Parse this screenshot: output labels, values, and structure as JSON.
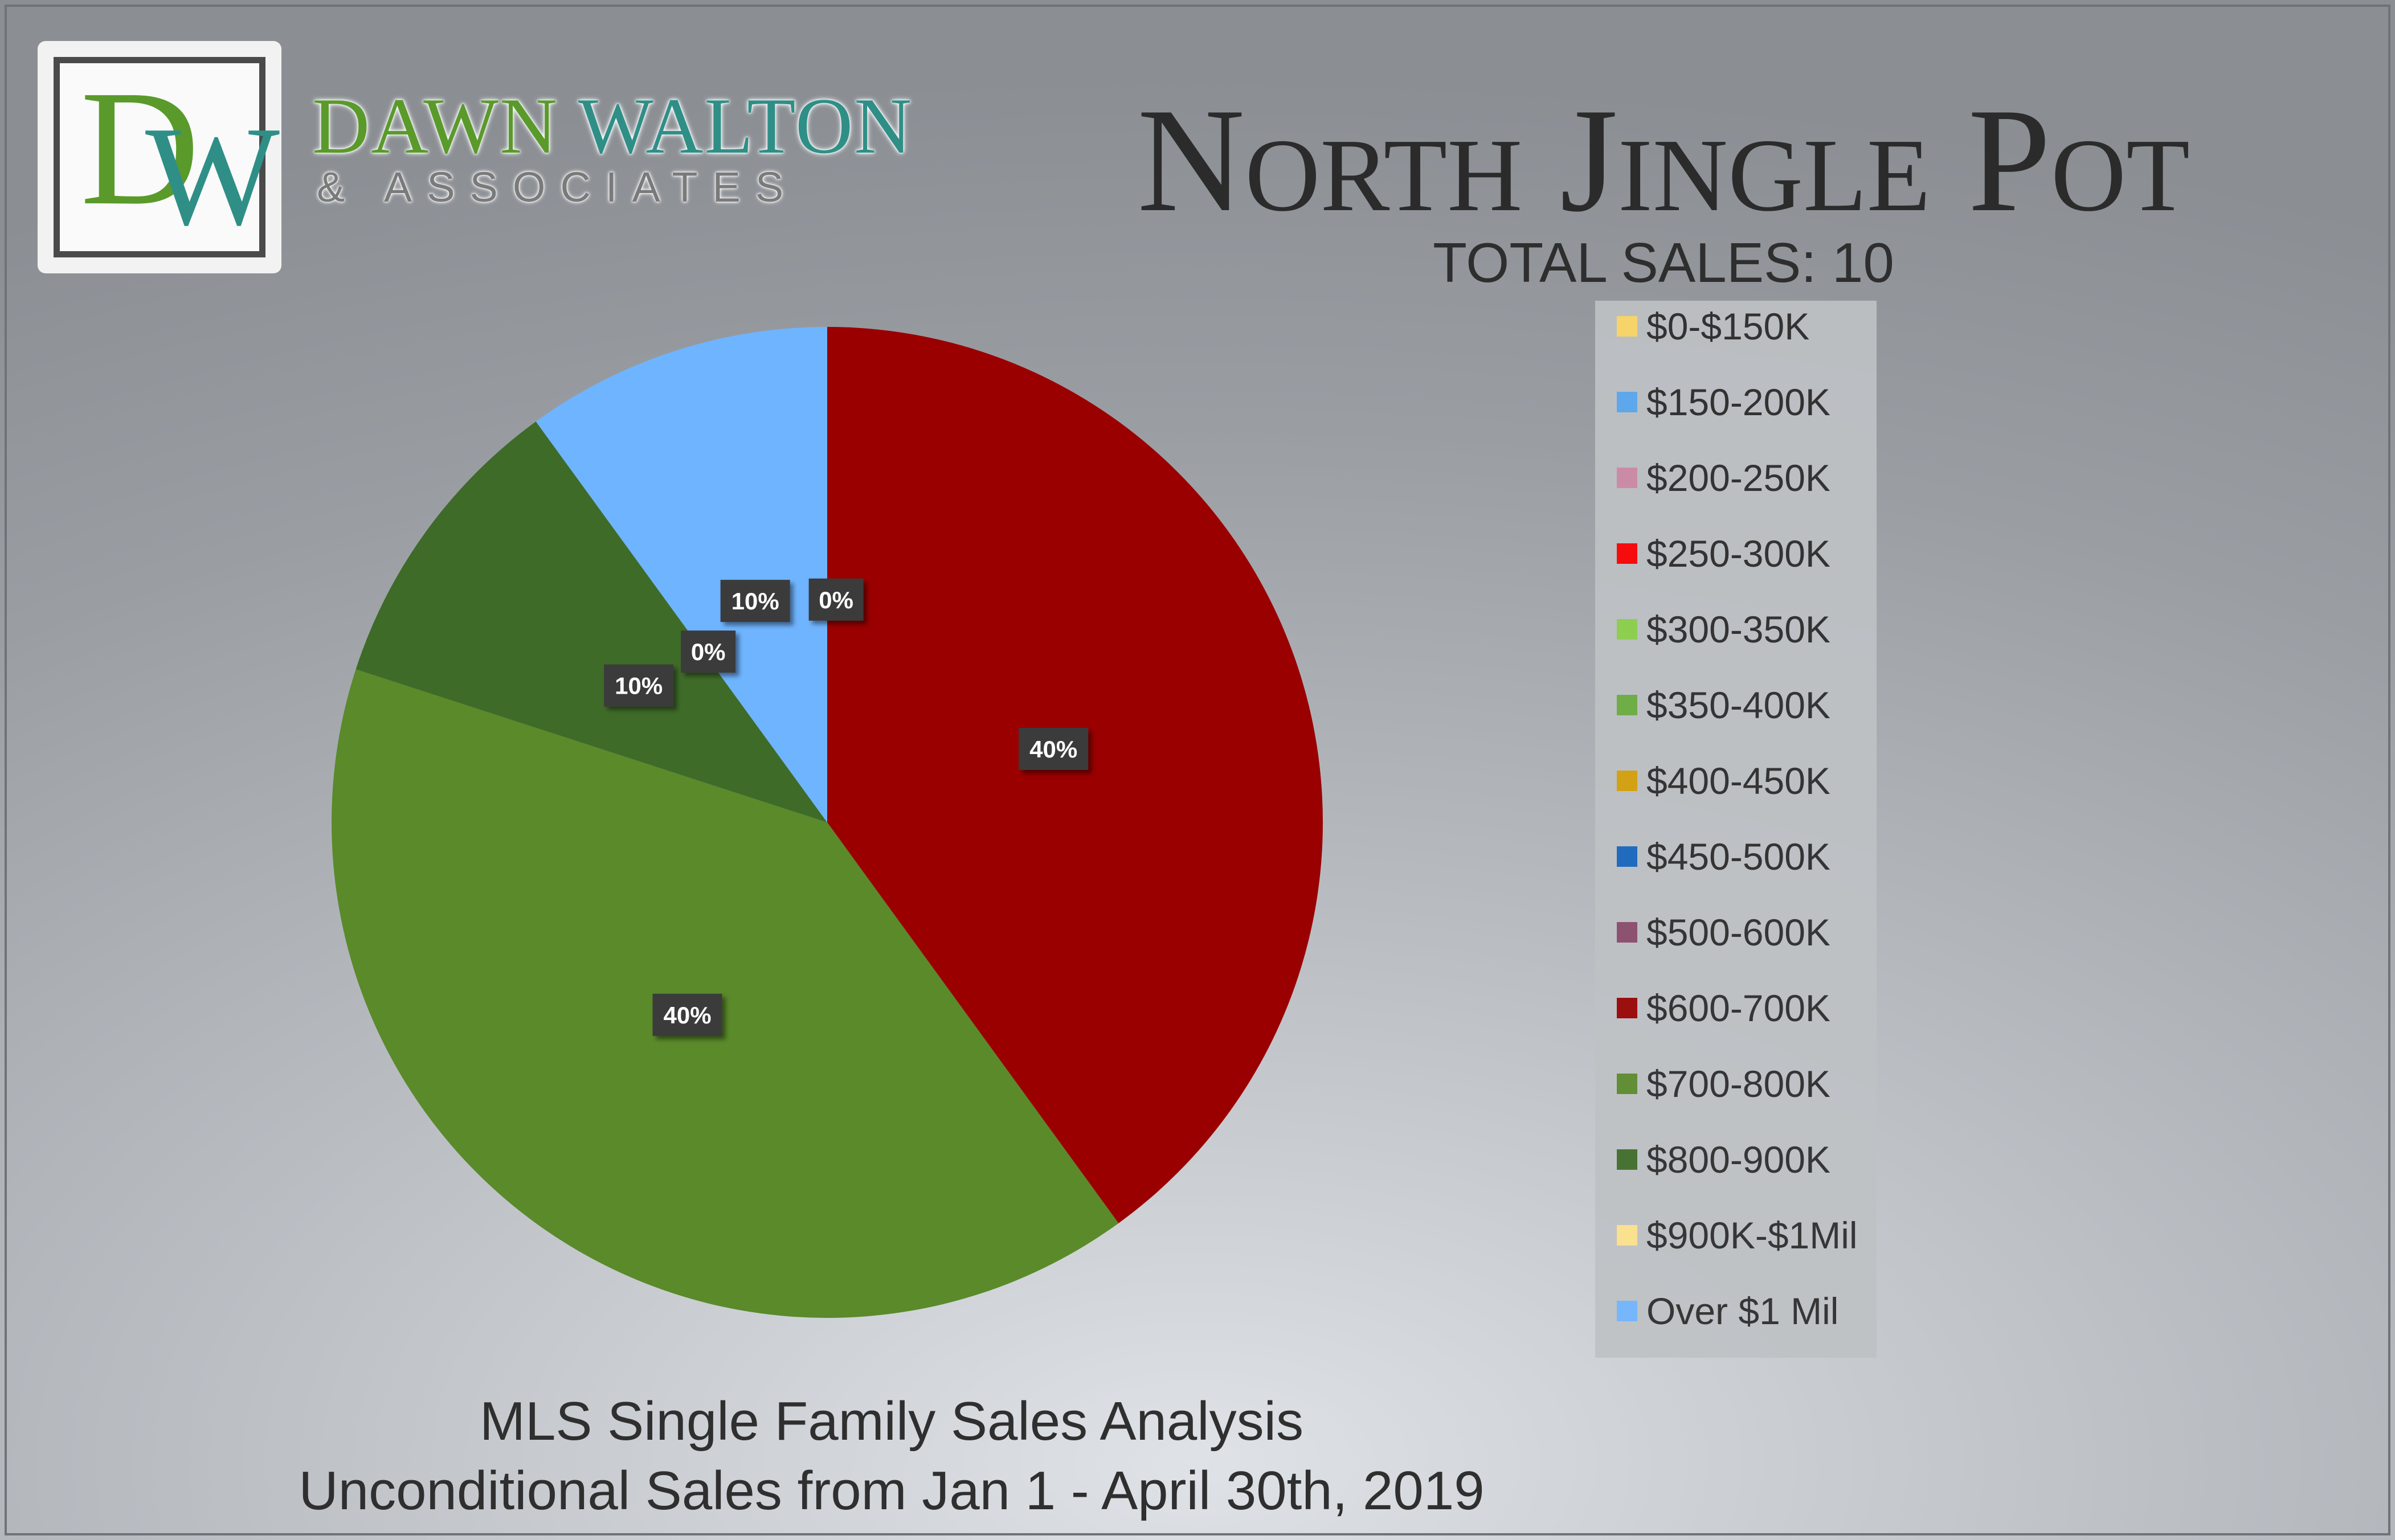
{
  "branding": {
    "logo_letters": "DW",
    "name_word1": "DAWN",
    "name_word2": "WALTON",
    "subtitle": "& ASSOCIATES"
  },
  "header": {
    "title": "North Jingle Pot",
    "total_sales": "TOTAL SALES: 10"
  },
  "footer": {
    "line1": "MLS Single Family Sales Analysis",
    "line2": "Unconditional Sales from Jan 1 - April 30th, 2019"
  },
  "chart_data": {
    "type": "pie",
    "title": "North Jingle Pot",
    "legend_position": "right",
    "categories": [
      "$0-$150K",
      "$150-200K",
      "$200-250K",
      "$250-300K",
      "$300-350K",
      "$350-400K",
      "$400-450K",
      "$450-500K",
      "$500-600K",
      "$600-700K",
      "$700-800K",
      "$800-900K",
      "$900K-$1Mil",
      "Over $1 Mil"
    ],
    "colors": [
      "#ffd966",
      "#5aa8f2",
      "#d08aa8",
      "#ff0000",
      "#8cd24a",
      "#6aae3e",
      "#d6a007",
      "#1565c0",
      "#8a4a6a",
      "#9a0000",
      "#5a8a2a",
      "#3e6b28",
      "#ffe38a",
      "#6fb4ff"
    ],
    "values": [
      0,
      0,
      0,
      0,
      0,
      0,
      0,
      0,
      0,
      4,
      4,
      1,
      0,
      1
    ],
    "percent_labels": [
      {
        "category": "$600-700K",
        "text": "40%"
      },
      {
        "category": "$700-800K",
        "text": "40%"
      },
      {
        "category": "$800-900K",
        "text": "10%"
      },
      {
        "category": "$900K-$1Mil",
        "text": "0%"
      },
      {
        "category": "Over $1 Mil",
        "text": "10%"
      },
      {
        "category": "$0-$150K",
        "text": "0%"
      }
    ]
  }
}
